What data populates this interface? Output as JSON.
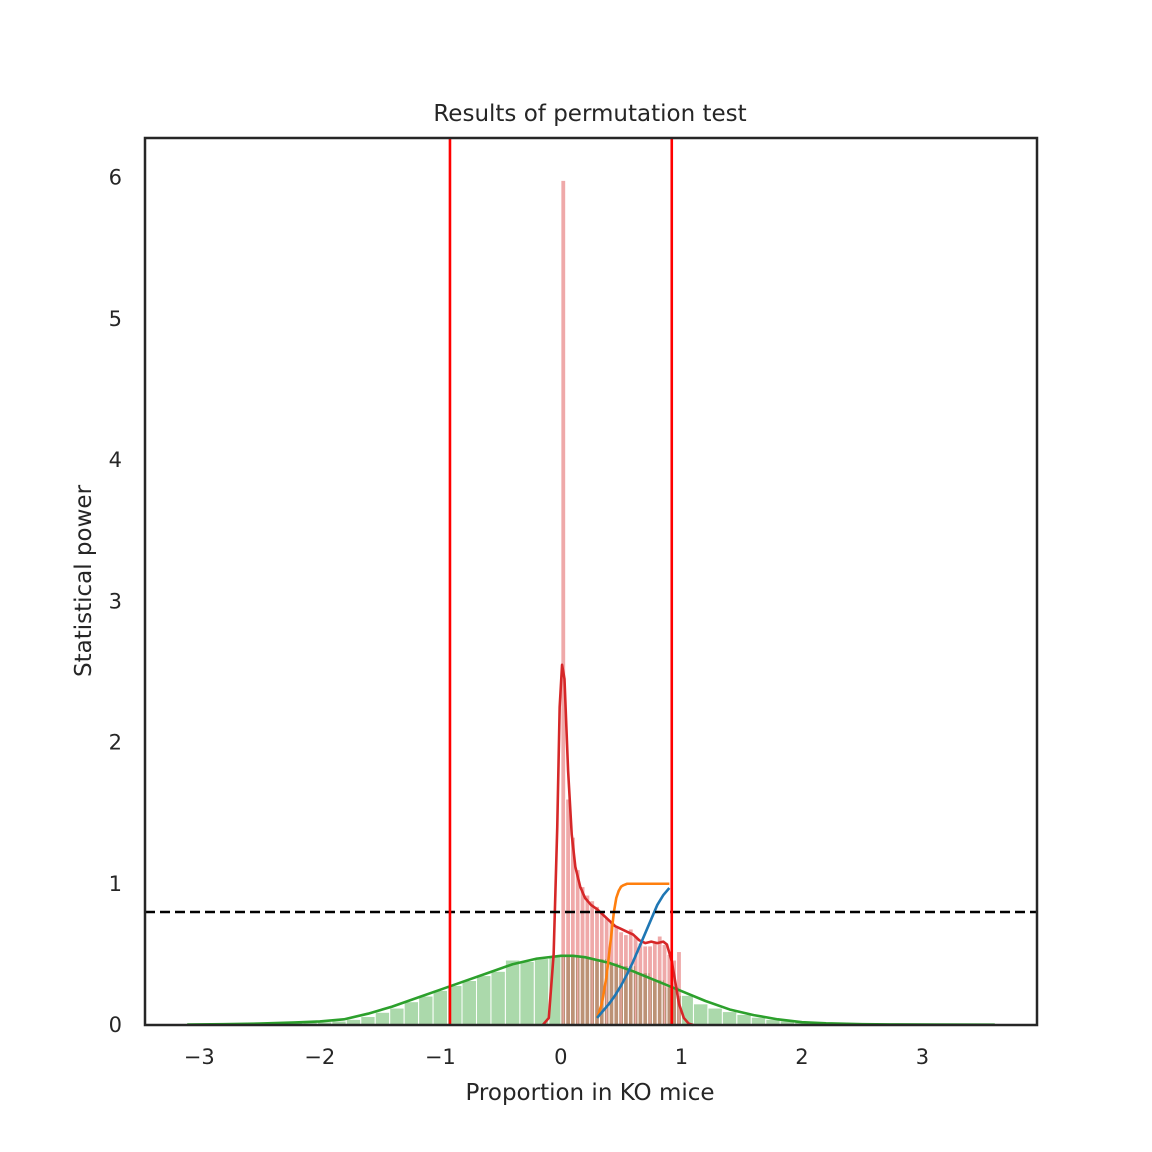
{
  "chart_data": {
    "type": "histogram",
    "title": "Results of permutation test",
    "xlabel": "Proportion in KO mice",
    "ylabel": "Statistical power",
    "xlim": [
      -3.45,
      3.95
    ],
    "ylim": [
      0,
      6.28
    ],
    "x_ticks": [
      -3,
      -2,
      -1,
      0,
      1,
      2,
      3
    ],
    "x_tick_labels": [
      "−3",
      "−2",
      "−1",
      "0",
      "1",
      "2",
      "3"
    ],
    "y_ticks": [
      0,
      1,
      2,
      3,
      4,
      5,
      6
    ],
    "y_tick_labels": [
      "0",
      "1",
      "2",
      "3",
      "4",
      "5",
      "6"
    ],
    "grid": false,
    "colors": {
      "green_hist": "#2ca02c",
      "red_hist": "#d62728",
      "blue": "#1f77b4",
      "orange": "#ff7f0e",
      "vline": "#ff0000",
      "hline": "#000000"
    },
    "reference_lines": {
      "vertical": [
        -0.92,
        0.92
      ],
      "horizontal_dashed": 0.8
    },
    "series": [
      {
        "kind": "histogram",
        "color": "#2ca02c",
        "bins": [
          {
            "x0": -3.1,
            "x1": -2.98,
            "h": 0.005
          },
          {
            "x0": -2.98,
            "x1": -2.86,
            "h": 0.006
          },
          {
            "x0": -2.86,
            "x1": -2.74,
            "h": 0.007
          },
          {
            "x0": -2.74,
            "x1": -2.62,
            "h": 0.008
          },
          {
            "x0": -2.62,
            "x1": -2.5,
            "h": 0.009
          },
          {
            "x0": -2.5,
            "x1": -2.38,
            "h": 0.01
          },
          {
            "x0": -2.38,
            "x1": -2.26,
            "h": 0.012
          },
          {
            "x0": -2.26,
            "x1": -2.14,
            "h": 0.015
          },
          {
            "x0": -2.14,
            "x1": -2.02,
            "h": 0.018
          },
          {
            "x0": -2.02,
            "x1": -1.9,
            "h": 0.022
          },
          {
            "x0": -1.9,
            "x1": -1.78,
            "h": 0.028
          },
          {
            "x0": -1.78,
            "x1": -1.66,
            "h": 0.04
          },
          {
            "x0": -1.66,
            "x1": -1.54,
            "h": 0.06
          },
          {
            "x0": -1.54,
            "x1": -1.42,
            "h": 0.09
          },
          {
            "x0": -1.42,
            "x1": -1.3,
            "h": 0.12
          },
          {
            "x0": -1.3,
            "x1": -1.18,
            "h": 0.165
          },
          {
            "x0": -1.18,
            "x1": -1.06,
            "h": 0.205
          },
          {
            "x0": -1.06,
            "x1": -0.94,
            "h": 0.245
          },
          {
            "x0": -0.94,
            "x1": -0.82,
            "h": 0.28
          },
          {
            "x0": -0.82,
            "x1": -0.7,
            "h": 0.315
          },
          {
            "x0": -0.7,
            "x1": -0.58,
            "h": 0.35
          },
          {
            "x0": -0.58,
            "x1": -0.46,
            "h": 0.38
          },
          {
            "x0": -0.46,
            "x1": -0.34,
            "h": 0.46
          },
          {
            "x0": -0.34,
            "x1": -0.22,
            "h": 0.45
          },
          {
            "x0": -0.22,
            "x1": -0.1,
            "h": 0.47
          },
          {
            "x0": -0.1,
            "x1": 0.02,
            "h": 0.49
          },
          {
            "x0": 0.02,
            "x1": 0.14,
            "h": 0.49
          },
          {
            "x0": 0.14,
            "x1": 0.26,
            "h": 0.48
          },
          {
            "x0": 0.26,
            "x1": 0.38,
            "h": 0.47
          },
          {
            "x0": 0.38,
            "x1": 0.5,
            "h": 0.44
          },
          {
            "x0": 0.5,
            "x1": 0.62,
            "h": 0.42
          },
          {
            "x0": 0.62,
            "x1": 0.74,
            "h": 0.37
          },
          {
            "x0": 0.74,
            "x1": 0.86,
            "h": 0.32
          },
          {
            "x0": 0.86,
            "x1": 0.98,
            "h": 0.27
          },
          {
            "x0": 0.98,
            "x1": 1.1,
            "h": 0.21
          },
          {
            "x0": 1.1,
            "x1": 1.22,
            "h": 0.15
          },
          {
            "x0": 1.22,
            "x1": 1.34,
            "h": 0.12
          },
          {
            "x0": 1.34,
            "x1": 1.46,
            "h": 0.095
          },
          {
            "x0": 1.46,
            "x1": 1.58,
            "h": 0.075
          },
          {
            "x0": 1.58,
            "x1": 1.7,
            "h": 0.055
          },
          {
            "x0": 1.7,
            "x1": 1.82,
            "h": 0.04
          },
          {
            "x0": 1.82,
            "x1": 1.94,
            "h": 0.03
          },
          {
            "x0": 1.94,
            "x1": 2.06,
            "h": 0.022
          },
          {
            "x0": 2.06,
            "x1": 2.18,
            "h": 0.017
          },
          {
            "x0": 2.18,
            "x1": 2.3,
            "h": 0.013
          },
          {
            "x0": 2.3,
            "x1": 2.42,
            "h": 0.01
          },
          {
            "x0": 2.42,
            "x1": 2.54,
            "h": 0.008
          },
          {
            "x0": 2.54,
            "x1": 2.66,
            "h": 0.007
          },
          {
            "x0": 2.66,
            "x1": 2.78,
            "h": 0.006
          },
          {
            "x0": 2.78,
            "x1": 2.9,
            "h": 0.005
          },
          {
            "x0": 2.9,
            "x1": 3.02,
            "h": 0.005
          },
          {
            "x0": 3.02,
            "x1": 3.14,
            "h": 0.004
          },
          {
            "x0": 3.14,
            "x1": 3.26,
            "h": 0.004
          },
          {
            "x0": 3.26,
            "x1": 3.38,
            "h": 0.003
          },
          {
            "x0": 3.38,
            "x1": 3.5,
            "h": 0.003
          },
          {
            "x0": 3.5,
            "x1": 3.62,
            "h": 0.003
          }
        ]
      },
      {
        "kind": "kde",
        "color": "#2ca02c",
        "x": [
          -3.1,
          -2.8,
          -2.5,
          -2.2,
          -2.0,
          -1.8,
          -1.6,
          -1.4,
          -1.2,
          -1.0,
          -0.8,
          -0.6,
          -0.4,
          -0.2,
          0.0,
          0.1,
          0.2,
          0.4,
          0.6,
          0.8,
          1.0,
          1.2,
          1.4,
          1.6,
          1.8,
          2.0,
          2.2,
          2.5,
          2.8,
          3.1,
          3.6
        ],
        "y": [
          0.003,
          0.006,
          0.01,
          0.018,
          0.025,
          0.04,
          0.08,
          0.13,
          0.19,
          0.25,
          0.31,
          0.37,
          0.43,
          0.47,
          0.49,
          0.49,
          0.48,
          0.44,
          0.38,
          0.31,
          0.24,
          0.17,
          0.11,
          0.07,
          0.04,
          0.02,
          0.012,
          0.006,
          0.004,
          0.003,
          0.002
        ]
      },
      {
        "kind": "histogram",
        "color": "#d62728",
        "bins": [
          {
            "x0": 0.0,
            "x1": 0.04,
            "h": 5.98
          },
          {
            "x0": 0.04,
            "x1": 0.08,
            "h": 1.6
          },
          {
            "x0": 0.08,
            "x1": 0.12,
            "h": 1.33
          },
          {
            "x0": 0.12,
            "x1": 0.16,
            "h": 1.1
          },
          {
            "x0": 0.16,
            "x1": 0.2,
            "h": 0.98
          },
          {
            "x0": 0.2,
            "x1": 0.24,
            "h": 0.92
          },
          {
            "x0": 0.24,
            "x1": 0.28,
            "h": 0.88
          },
          {
            "x0": 0.28,
            "x1": 0.32,
            "h": 0.84
          },
          {
            "x0": 0.32,
            "x1": 0.36,
            "h": 0.8
          },
          {
            "x0": 0.36,
            "x1": 0.4,
            "h": 0.76
          },
          {
            "x0": 0.4,
            "x1": 0.44,
            "h": 0.73
          },
          {
            "x0": 0.44,
            "x1": 0.48,
            "h": 0.7
          },
          {
            "x0": 0.48,
            "x1": 0.52,
            "h": 0.66
          },
          {
            "x0": 0.52,
            "x1": 0.56,
            "h": 0.64
          },
          {
            "x0": 0.56,
            "x1": 0.6,
            "h": 0.68
          },
          {
            "x0": 0.6,
            "x1": 0.64,
            "h": 0.63
          },
          {
            "x0": 0.64,
            "x1": 0.68,
            "h": 0.58
          },
          {
            "x0": 0.68,
            "x1": 0.72,
            "h": 0.56
          },
          {
            "x0": 0.72,
            "x1": 0.76,
            "h": 0.56
          },
          {
            "x0": 0.76,
            "x1": 0.8,
            "h": 0.58
          },
          {
            "x0": 0.8,
            "x1": 0.84,
            "h": 0.63
          },
          {
            "x0": 0.84,
            "x1": 0.88,
            "h": 0.57
          },
          {
            "x0": 0.88,
            "x1": 0.92,
            "h": 0.5
          },
          {
            "x0": 0.92,
            "x1": 0.96,
            "h": 0.46
          },
          {
            "x0": 0.96,
            "x1": 1.0,
            "h": 0.52
          }
        ]
      },
      {
        "kind": "kde",
        "color": "#d62728",
        "x": [
          -0.15,
          -0.1,
          -0.06,
          -0.03,
          -0.01,
          0.01,
          0.03,
          0.06,
          0.09,
          0.12,
          0.16,
          0.2,
          0.25,
          0.3,
          0.35,
          0.4,
          0.45,
          0.5,
          0.55,
          0.6,
          0.65,
          0.7,
          0.75,
          0.8,
          0.85,
          0.88,
          0.92,
          0.95,
          0.98,
          1.02,
          1.06,
          1.1
        ],
        "y": [
          0.0,
          0.05,
          0.5,
          1.4,
          2.25,
          2.55,
          2.45,
          1.8,
          1.35,
          1.12,
          0.98,
          0.9,
          0.85,
          0.82,
          0.78,
          0.74,
          0.7,
          0.68,
          0.66,
          0.64,
          0.6,
          0.58,
          0.59,
          0.58,
          0.59,
          0.57,
          0.45,
          0.3,
          0.15,
          0.05,
          0.01,
          0.0
        ]
      },
      {
        "kind": "line",
        "color": "#ff7f0e",
        "x": [
          0.3,
          0.34,
          0.38,
          0.4,
          0.42,
          0.44,
          0.46,
          0.48,
          0.5,
          0.52,
          0.55,
          0.6,
          0.7,
          0.8,
          0.9
        ],
        "y": [
          0.05,
          0.15,
          0.35,
          0.5,
          0.65,
          0.8,
          0.9,
          0.95,
          0.98,
          0.99,
          1.0,
          1.0,
          1.0,
          1.0,
          1.0
        ]
      },
      {
        "kind": "line",
        "color": "#1f77b4",
        "x": [
          0.3,
          0.35,
          0.4,
          0.45,
          0.5,
          0.55,
          0.6,
          0.65,
          0.7,
          0.75,
          0.8,
          0.85,
          0.9
        ],
        "y": [
          0.05,
          0.1,
          0.15,
          0.21,
          0.28,
          0.36,
          0.45,
          0.55,
          0.65,
          0.75,
          0.85,
          0.92,
          0.97
        ]
      }
    ]
  }
}
